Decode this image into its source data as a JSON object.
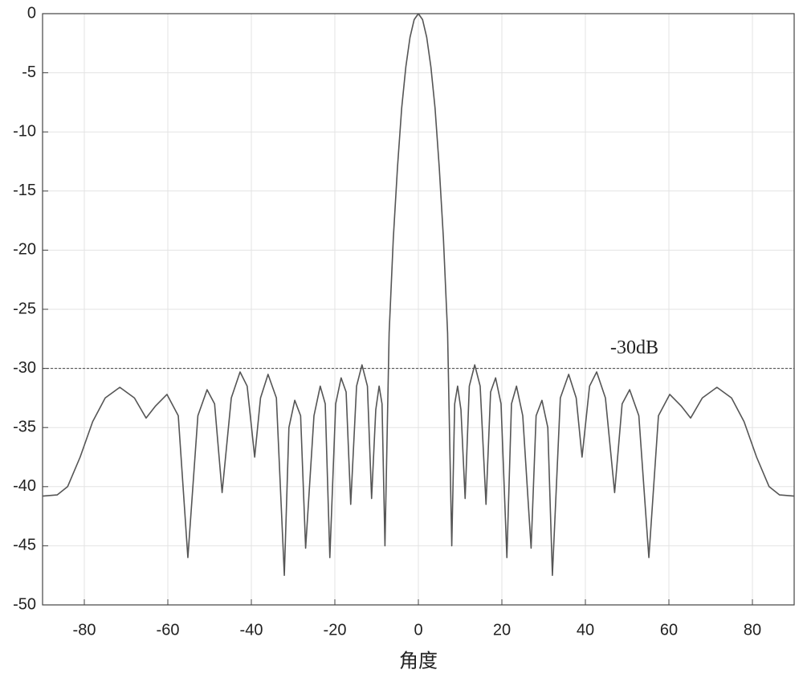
{
  "chart_data": {
    "type": "line",
    "x_label": "角度",
    "x": [
      -90,
      -86.5,
      -84,
      -81,
      -78,
      -75,
      -71.5,
      -68,
      -65.2,
      -63,
      -60.2,
      -57.5,
      -55.2,
      -52.8,
      -50.6,
      -48.8,
      -47,
      -44.8,
      -42.7,
      -41,
      -39.2,
      -37.8,
      -36,
      -34,
      -32.1,
      -31,
      -29.6,
      -28.2,
      -27,
      -25,
      -23.5,
      -22.3,
      -21.2,
      -19.8,
      -18.5,
      -17.3,
      -16.2,
      -14.8,
      -13.5,
      -12.2,
      -11.2,
      -10.2,
      -9.4,
      -8.7,
      -8,
      -7,
      -6,
      -5,
      -4,
      -3,
      -2,
      -1,
      0,
      1,
      2,
      3,
      4,
      5,
      6,
      7,
      8,
      8.7,
      9.4,
      10.2,
      11.2,
      12.2,
      13.5,
      14.8,
      16.2,
      17.3,
      18.5,
      19.8,
      21.2,
      22.3,
      23.5,
      25,
      27,
      28.2,
      29.6,
      31,
      32.1,
      34,
      36,
      37.8,
      39.2,
      41,
      42.7,
      44.8,
      47,
      48.8,
      50.6,
      52.8,
      55.2,
      57.5,
      60.2,
      63,
      65.2,
      68,
      71.5,
      75,
      78,
      81,
      84,
      86.5,
      90
    ],
    "series": [
      {
        "color": "#555555",
        "values": [
          -40.8,
          -40.7,
          -40,
          -37.5,
          -34.5,
          -32.5,
          -31.6,
          -32.5,
          -34.2,
          -33.2,
          -32.2,
          -34,
          -46,
          -34,
          -31.8,
          -33,
          -40.5,
          -32.5,
          -30.3,
          -31.5,
          -37.5,
          -32.5,
          -30.5,
          -32.5,
          -47.5,
          -35,
          -32.7,
          -34,
          -45.2,
          -34,
          -31.5,
          -33,
          -46,
          -33,
          -30.8,
          -32,
          -41.5,
          -31.5,
          -29.7,
          -31.5,
          -41,
          -33.5,
          -31.5,
          -33,
          -45,
          -27,
          -19,
          -13,
          -8,
          -4.5,
          -2,
          -0.5,
          0,
          -0.5,
          -2,
          -4.5,
          -8,
          -13,
          -19,
          -27,
          -45,
          -33,
          -31.5,
          -33.5,
          -41,
          -31.5,
          -29.7,
          -31.5,
          -41.5,
          -32,
          -30.8,
          -33,
          -46,
          -33,
          -31.5,
          -34,
          -45.2,
          -34,
          -32.7,
          -35,
          -47.5,
          -32.5,
          -30.5,
          -32.5,
          -37.5,
          -31.5,
          -30.3,
          -32.5,
          -40.5,
          -33,
          -31.8,
          -34,
          -46,
          -34,
          -32.2,
          -33.2,
          -34.2,
          -32.5,
          -31.6,
          -32.5,
          -34.5,
          -37.5,
          -40,
          -40.7,
          -40.8
        ]
      }
    ],
    "annotations": [
      {
        "text": "-30dB",
        "y": -30,
        "color": "#444444"
      }
    ],
    "xlim": [
      -90,
      90
    ],
    "xticks": [
      -80,
      -60,
      -40,
      -20,
      0,
      20,
      40,
      60,
      80
    ],
    "ylim": [
      -50,
      0
    ],
    "yticks": [
      -50,
      -45,
      -40,
      -35,
      -30,
      -25,
      -20,
      -15,
      -10,
      -5,
      0
    ],
    "grid": true
  }
}
